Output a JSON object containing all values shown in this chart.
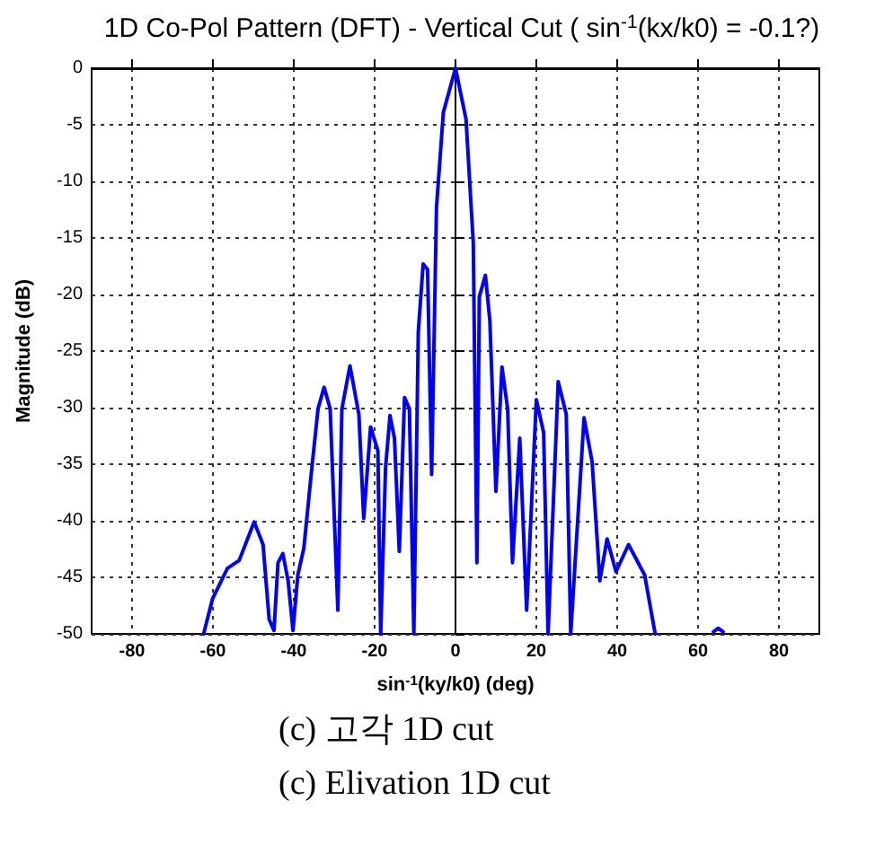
{
  "chart_data": {
    "type": "line",
    "title": "1D Co-Pol Pattern (DFT) - Vertical Cut ( sin$^{-1}$(kx/k0) = -0.1?)",
    "xlabel": "sin$^{-1}$(ky/k0) (deg)",
    "ylabel": "Magnitude (dB)",
    "series": [
      {
        "color": "#0000ff",
        "x": [
          -62.3,
          -60.1,
          -56.4,
          -53.5,
          -49.8,
          -47.6,
          -46.1,
          -44.9,
          -43.9,
          -42.7,
          -41.4,
          -40.2,
          -39.0,
          -37.5,
          -35.7,
          -34.0,
          -32.5,
          -31.0,
          -29.1,
          -28.1,
          -26.1,
          -23.9,
          -22.7,
          -21.0,
          -19.2,
          -18.5,
          -17.3,
          -16.2,
          -15.1,
          -13.9,
          -12.6,
          -11.4,
          -10.3,
          -9.2,
          -8.0,
          -6.9,
          -5.9,
          -4.7,
          -3.0,
          0,
          2.6,
          4.4,
          5.3,
          5.9,
          7.4,
          8.5,
          10.0,
          11.5,
          12.9,
          14.1,
          15.9,
          17.6,
          20.0,
          21.8,
          22.9,
          25.4,
          27.4,
          28.5,
          31.8,
          33.8,
          35.7,
          37.5,
          39.7,
          42.8,
          46.8,
          49.4
        ],
        "values": [
          -50,
          -46.9,
          -44.2,
          -43.5,
          -40.1,
          -42.1,
          -48.7,
          -49.7,
          -43.7,
          -42.9,
          -45.3,
          -49.7,
          -44.8,
          -42.4,
          -35.9,
          -30.1,
          -28.2,
          -30.1,
          -47.9,
          -30.1,
          -26.3,
          -30.6,
          -39.8,
          -31.7,
          -33.8,
          -50,
          -35.3,
          -30.7,
          -32.7,
          -42.7,
          -29.1,
          -30.1,
          -50,
          -23.3,
          -17.3,
          -17.8,
          -35.9,
          -12.3,
          -3.9,
          0,
          -4.5,
          -15.4,
          -43.7,
          -20.2,
          -18.3,
          -22.3,
          -37.4,
          -26.4,
          -30.1,
          -43.7,
          -32.7,
          -47.9,
          -29.3,
          -32.2,
          -50,
          -27.7,
          -30.6,
          -50,
          -30.9,
          -34.8,
          -45.3,
          -41.6,
          -44.5,
          -42.1,
          -44.8,
          -50
        ]
      },
      {
        "color": "#0000ff",
        "x": [
          63.8,
          65,
          66.2
        ],
        "values": [
          -49.8,
          -49.5,
          -49.8
        ]
      }
    ],
    "xlim": [
      -90,
      90
    ],
    "xticks": [
      -80,
      -60,
      -40,
      -20,
      0,
      20,
      40,
      60,
      80
    ],
    "ylim": [
      -50,
      0
    ],
    "yticks": [
      -50,
      -45,
      -40,
      -35,
      -30,
      -25,
      -20,
      -15,
      -10,
      -5,
      0
    ],
    "grid": true,
    "line_style": "solid",
    "marker": "none",
    "annotations": [
      "(c) 고각 1D cut",
      "(c) Elivation 1D cut"
    ]
  }
}
